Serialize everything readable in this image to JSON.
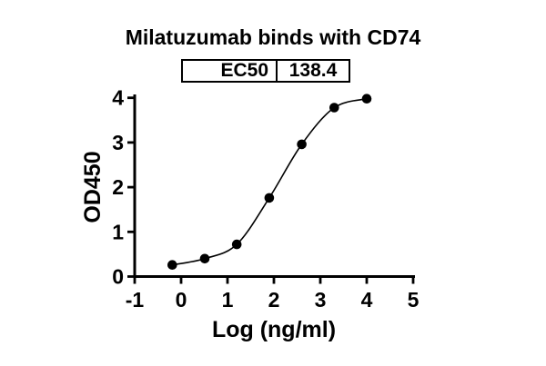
{
  "chart_data": {
    "type": "scatter",
    "title": "Milatuzumab binds with CD74",
    "xlabel": "Log (ng/ml)",
    "ylabel": "OD450",
    "xlim": [
      -1,
      5
    ],
    "ylim": [
      0,
      4
    ],
    "x_ticks": [
      -1,
      0,
      1,
      2,
      3,
      4,
      5
    ],
    "y_ticks": [
      0,
      1,
      2,
      3,
      4
    ],
    "grid": false,
    "legend": "none",
    "marker_color": "#000000",
    "line_color": "#000000",
    "series": [
      {
        "name": "Milatuzumab",
        "x": [
          -0.19,
          0.51,
          1.2,
          1.9,
          2.6,
          3.3,
          4.0
        ],
        "y": [
          0.26,
          0.4,
          0.72,
          1.76,
          2.96,
          3.78,
          3.98
        ]
      }
    ],
    "curve_style": "smooth sigmoidal fit through points",
    "ec50": {
      "label": "EC50",
      "value": "138.4"
    }
  }
}
